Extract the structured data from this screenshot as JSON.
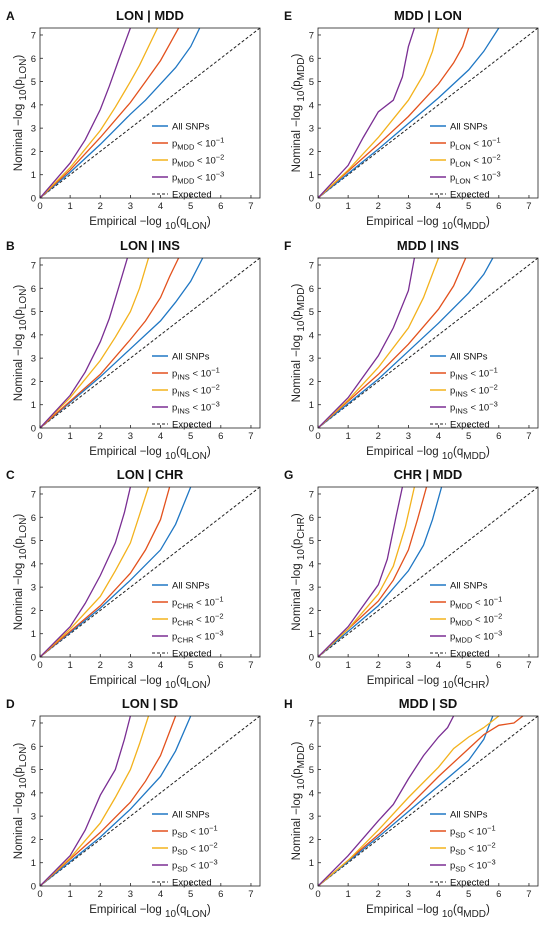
{
  "colors": {
    "all": "#1f77c4",
    "p1": "#e3511d",
    "p2": "#f3b21c",
    "p3": "#7a2e93",
    "expected": "#222222"
  },
  "chart_data": [
    {
      "letter": "A",
      "title": "LON | MDD",
      "type": "line",
      "xlabel": "Empirical −log 10(q LON)",
      "ylabel": "Nominal −log 10(p LON)",
      "xlim": [
        0,
        7.3
      ],
      "ylim": [
        0,
        7.3
      ],
      "ticks": [
        0,
        1,
        2,
        3,
        4,
        5,
        6,
        7
      ],
      "legend_position": "bottom-right",
      "series": [
        {
          "name": "All SNPs",
          "key": "all",
          "x": [
            0,
            1,
            2,
            3,
            3.5,
            4,
            4.5,
            5,
            5.3
          ],
          "y": [
            0,
            1.1,
            2.3,
            3.6,
            4.2,
            4.9,
            5.6,
            6.5,
            7.3
          ]
        },
        {
          "name": "pMDD < 10−1",
          "key": "p1",
          "x": [
            0,
            1,
            2,
            3,
            3.5,
            4,
            4.3,
            4.6
          ],
          "y": [
            0,
            1.2,
            2.6,
            4.1,
            5.0,
            5.9,
            6.6,
            7.3
          ]
        },
        {
          "name": "pMDD < 10−2",
          "key": "p2",
          "x": [
            0,
            1,
            2,
            2.5,
            3,
            3.3,
            3.6,
            3.9
          ],
          "y": [
            0,
            1.3,
            2.9,
            3.9,
            5.0,
            5.7,
            6.5,
            7.3
          ]
        },
        {
          "name": "pMDD < 10−3",
          "key": "p3",
          "x": [
            0,
            1,
            1.5,
            2,
            2.3,
            2.6,
            2.8,
            3.0
          ],
          "y": [
            0,
            1.5,
            2.5,
            3.8,
            4.8,
            5.9,
            6.6,
            7.3
          ]
        },
        {
          "name": "Expected",
          "key": "expected",
          "x": [
            0,
            7.3
          ],
          "y": [
            0,
            7.3
          ]
        }
      ]
    },
    {
      "letter": "E",
      "title": "MDD | LON",
      "type": "line",
      "xlabel": "Empirical −log 10(q MDD)",
      "ylabel": "Nominal −log 10(p MDD)",
      "xlim": [
        0,
        7.3
      ],
      "ylim": [
        0,
        7.3
      ],
      "ticks": [
        0,
        1,
        2,
        3,
        4,
        5,
        6,
        7
      ],
      "legend_position": "bottom-right",
      "series": [
        {
          "name": "All SNPs",
          "key": "all",
          "x": [
            0,
            2,
            3,
            4,
            5,
            5.5,
            6.0
          ],
          "y": [
            0,
            2.1,
            3.2,
            4.3,
            5.5,
            6.3,
            7.3
          ]
        },
        {
          "name": "pLON < 10−1",
          "key": "p1",
          "x": [
            0,
            2,
            3,
            4,
            4.5,
            4.8,
            5.0
          ],
          "y": [
            0,
            2.3,
            3.5,
            4.9,
            5.8,
            6.5,
            7.3
          ]
        },
        {
          "name": "pLON < 10−2",
          "key": "p2",
          "x": [
            0,
            1,
            2,
            3,
            3.5,
            3.8,
            4.0
          ],
          "y": [
            0,
            1.2,
            2.6,
            4.2,
            5.3,
            6.3,
            7.3
          ]
        },
        {
          "name": "pLON < 10−3",
          "key": "p3",
          "x": [
            0,
            1,
            1.5,
            2,
            2.5,
            2.8,
            3.0,
            3.2
          ],
          "y": [
            0,
            1.4,
            2.6,
            3.7,
            4.2,
            5.2,
            6.5,
            7.3
          ]
        },
        {
          "name": "Expected",
          "key": "expected",
          "x": [
            0,
            7.3
          ],
          "y": [
            0,
            7.3
          ]
        }
      ]
    },
    {
      "letter": "B",
      "title": "LON | INS",
      "type": "line",
      "xlabel": "Empirical −log 10(q LON)",
      "ylabel": "Nominal −log 10(p LON)",
      "xlim": [
        0,
        7.3
      ],
      "ylim": [
        0,
        7.3
      ],
      "ticks": [
        0,
        1,
        2,
        3,
        4,
        5,
        6,
        7
      ],
      "legend_position": "bottom-right",
      "series": [
        {
          "name": "All SNPs",
          "key": "all",
          "x": [
            0,
            2,
            3,
            4,
            4.5,
            5,
            5.4
          ],
          "y": [
            0,
            2.2,
            3.4,
            4.6,
            5.4,
            6.3,
            7.3
          ]
        },
        {
          "name": "pINS < 10−1",
          "key": "p1",
          "x": [
            0,
            2,
            3,
            3.5,
            4,
            4.3,
            4.6
          ],
          "y": [
            0,
            2.3,
            3.8,
            4.6,
            5.6,
            6.5,
            7.3
          ]
        },
        {
          "name": "pINS < 10−2",
          "key": "p2",
          "x": [
            0,
            1,
            2,
            2.5,
            3,
            3.3,
            3.6
          ],
          "y": [
            0,
            1.3,
            2.9,
            3.9,
            5.0,
            6.0,
            7.3
          ]
        },
        {
          "name": "pINS < 10−3",
          "key": "p3",
          "x": [
            0,
            1,
            1.5,
            2,
            2.3,
            2.6,
            2.9
          ],
          "y": [
            0,
            1.4,
            2.4,
            3.7,
            4.7,
            6.0,
            7.3
          ]
        },
        {
          "name": "Expected",
          "key": "expected",
          "x": [
            0,
            7.3
          ],
          "y": [
            0,
            7.3
          ]
        }
      ]
    },
    {
      "letter": "F",
      "title": "MDD | INS",
      "type": "line",
      "xlabel": "Empirical −log 10(q MDD)",
      "ylabel": "Nominal −log 10(p MDD)",
      "xlim": [
        0,
        7.3
      ],
      "ylim": [
        0,
        7.3
      ],
      "ticks": [
        0,
        1,
        2,
        3,
        4,
        5,
        6,
        7
      ],
      "legend_position": "bottom-right",
      "series": [
        {
          "name": "All SNPs",
          "key": "all",
          "x": [
            0,
            2,
            3,
            4,
            5,
            5.5,
            5.8
          ],
          "y": [
            0,
            2.1,
            3.3,
            4.5,
            5.8,
            6.6,
            7.3
          ]
        },
        {
          "name": "pINS < 10−1",
          "key": "p1",
          "x": [
            0,
            2,
            3,
            4,
            4.5,
            4.9
          ],
          "y": [
            0,
            2.3,
            3.6,
            5.1,
            6.1,
            7.3
          ]
        },
        {
          "name": "pINS < 10−2",
          "key": "p2",
          "x": [
            0,
            1,
            2,
            3,
            3.5,
            4.0
          ],
          "y": [
            0,
            1.2,
            2.6,
            4.3,
            5.6,
            7.3
          ]
        },
        {
          "name": "pINS < 10−3",
          "key": "p3",
          "x": [
            0,
            1,
            2,
            2.5,
            3,
            3.2
          ],
          "y": [
            0,
            1.3,
            3.1,
            4.3,
            5.9,
            7.3
          ]
        },
        {
          "name": "Expected",
          "key": "expected",
          "x": [
            0,
            7.3
          ],
          "y": [
            0,
            7.3
          ]
        }
      ]
    },
    {
      "letter": "C",
      "title": "LON | CHR",
      "type": "line",
      "xlabel": "Empirical −log 10(q LON)",
      "ylabel": "Nominal −log 10(p LON)",
      "xlim": [
        0,
        7.3
      ],
      "ylim": [
        0,
        7.3
      ],
      "ticks": [
        0,
        1,
        2,
        3,
        4,
        5,
        6,
        7
      ],
      "legend_position": "bottom-right",
      "series": [
        {
          "name": "All SNPs",
          "key": "all",
          "x": [
            0,
            2,
            3,
            4,
            4.5,
            5.0
          ],
          "y": [
            0,
            2.1,
            3.3,
            4.6,
            5.7,
            7.3
          ]
        },
        {
          "name": "pCHR < 10−1",
          "key": "p1",
          "x": [
            0,
            2,
            3,
            3.5,
            4,
            4.3
          ],
          "y": [
            0,
            2.2,
            3.6,
            4.6,
            5.9,
            7.3
          ]
        },
        {
          "name": "pCHR < 10−2",
          "key": "p2",
          "x": [
            0,
            1,
            2,
            2.5,
            3,
            3.3,
            3.6
          ],
          "y": [
            0,
            1.2,
            2.6,
            3.7,
            4.9,
            6.1,
            7.3
          ]
        },
        {
          "name": "pCHR < 10−3",
          "key": "p3",
          "x": [
            0,
            1,
            1.5,
            2,
            2.5,
            2.8,
            3.0
          ],
          "y": [
            0,
            1.3,
            2.3,
            3.5,
            4.9,
            6.2,
            7.3
          ]
        },
        {
          "name": "Expected",
          "key": "expected",
          "x": [
            0,
            7.3
          ],
          "y": [
            0,
            7.3
          ]
        }
      ]
    },
    {
      "letter": "G",
      "title": "CHR | MDD",
      "type": "line",
      "xlabel": "Empirical −log 10(q CHR)",
      "ylabel": "Nominal −log 10(p CHR)",
      "xlim": [
        0,
        7.3
      ],
      "ylim": [
        0,
        7.3
      ],
      "ticks": [
        0,
        1,
        2,
        3,
        4,
        5,
        6,
        7
      ],
      "legend_position": "bottom-right",
      "series": [
        {
          "name": "All SNPs",
          "key": "all",
          "x": [
            0,
            2,
            3,
            3.5,
            3.8,
            4.1
          ],
          "y": [
            0,
            2.2,
            3.7,
            4.8,
            5.9,
            7.3
          ]
        },
        {
          "name": "pMDD < 10−1",
          "key": "p1",
          "x": [
            0,
            2,
            2.5,
            3,
            3.3,
            3.6
          ],
          "y": [
            0,
            2.4,
            3.3,
            4.6,
            5.9,
            7.3
          ]
        },
        {
          "name": "pMDD < 10−2",
          "key": "p2",
          "x": [
            0,
            1,
            2,
            2.5,
            2.9,
            3.2
          ],
          "y": [
            0,
            1.2,
            2.7,
            3.9,
            5.6,
            7.3
          ]
        },
        {
          "name": "pMDD < 10−3",
          "key": "p3",
          "x": [
            0,
            1,
            2,
            2.3,
            2.6,
            2.8
          ],
          "y": [
            0,
            1.3,
            3.1,
            4.2,
            6.1,
            7.3
          ]
        },
        {
          "name": "Expected",
          "key": "expected",
          "x": [
            0,
            7.3
          ],
          "y": [
            0,
            7.3
          ]
        }
      ]
    },
    {
      "letter": "D",
      "title": "LON | SD",
      "type": "line",
      "xlabel": "Empirical −log 10(q LON)",
      "ylabel": "Nominal −log 10(p LON)",
      "xlim": [
        0,
        7.3
      ],
      "ylim": [
        0,
        7.3
      ],
      "ticks": [
        0,
        1,
        2,
        3,
        4,
        5,
        6,
        7
      ],
      "legend_position": "bottom-right",
      "series": [
        {
          "name": "All SNPs",
          "key": "all",
          "x": [
            0,
            2,
            3,
            4,
            4.5,
            5.0
          ],
          "y": [
            0,
            2.1,
            3.3,
            4.7,
            5.8,
            7.3
          ]
        },
        {
          "name": "pSD < 10−1",
          "key": "p1",
          "x": [
            0,
            2,
            3,
            3.5,
            4,
            4.5
          ],
          "y": [
            0,
            2.3,
            3.6,
            4.5,
            5.6,
            7.3
          ]
        },
        {
          "name": "pSD < 10−2",
          "key": "p2",
          "x": [
            0,
            1,
            2,
            2.5,
            3,
            3.3,
            3.6
          ],
          "y": [
            0,
            1.2,
            2.7,
            3.8,
            5.0,
            6.1,
            7.3
          ]
        },
        {
          "name": "pSD < 10−3",
          "key": "p3",
          "x": [
            0,
            1,
            1.5,
            2,
            2.5,
            2.8,
            3.0
          ],
          "y": [
            0,
            1.3,
            2.4,
            3.9,
            5.0,
            6.3,
            7.3
          ]
        },
        {
          "name": "Expected",
          "key": "expected",
          "x": [
            0,
            7.3
          ],
          "y": [
            0,
            7.3
          ]
        }
      ]
    },
    {
      "letter": "H",
      "title": "MDD | SD",
      "type": "line",
      "xlabel": "Empirical −log 10(q MDD)",
      "ylabel": "Nominal −log 10(p MDD)",
      "xlim": [
        0,
        7.3
      ],
      "ylim": [
        0,
        7.3
      ],
      "ticks": [
        0,
        1,
        2,
        3,
        4,
        5,
        6,
        7
      ],
      "legend_position": "bottom-right",
      "series": [
        {
          "name": "All SNPs",
          "key": "all",
          "x": [
            0,
            2,
            3,
            4,
            5,
            5.5,
            5.8
          ],
          "y": [
            0,
            2.1,
            3.2,
            4.3,
            5.4,
            6.3,
            7.3
          ]
        },
        {
          "name": "pSD < 10−1",
          "key": "p1",
          "x": [
            0,
            2,
            3,
            4,
            5,
            5.5,
            6,
            6.5,
            6.8
          ],
          "y": [
            0,
            2.2,
            3.4,
            4.7,
            5.9,
            6.5,
            6.9,
            7.0,
            7.3
          ]
        },
        {
          "name": "pSD < 10−2",
          "key": "p2",
          "x": [
            0,
            1,
            2,
            3,
            4,
            4.5,
            5,
            5.5,
            6.0
          ],
          "y": [
            0,
            1.1,
            2.4,
            3.8,
            5.1,
            5.9,
            6.4,
            6.8,
            7.3
          ]
        },
        {
          "name": "pSD < 10−3",
          "key": "p3",
          "x": [
            0,
            1,
            2,
            2.5,
            3,
            3.5,
            4,
            4.3,
            4.5
          ],
          "y": [
            0,
            1.3,
            2.8,
            3.5,
            4.6,
            5.6,
            6.4,
            6.8,
            7.3
          ]
        },
        {
          "name": "Expected",
          "key": "expected",
          "x": [
            0,
            7.3
          ],
          "y": [
            0,
            7.3
          ]
        }
      ]
    }
  ]
}
